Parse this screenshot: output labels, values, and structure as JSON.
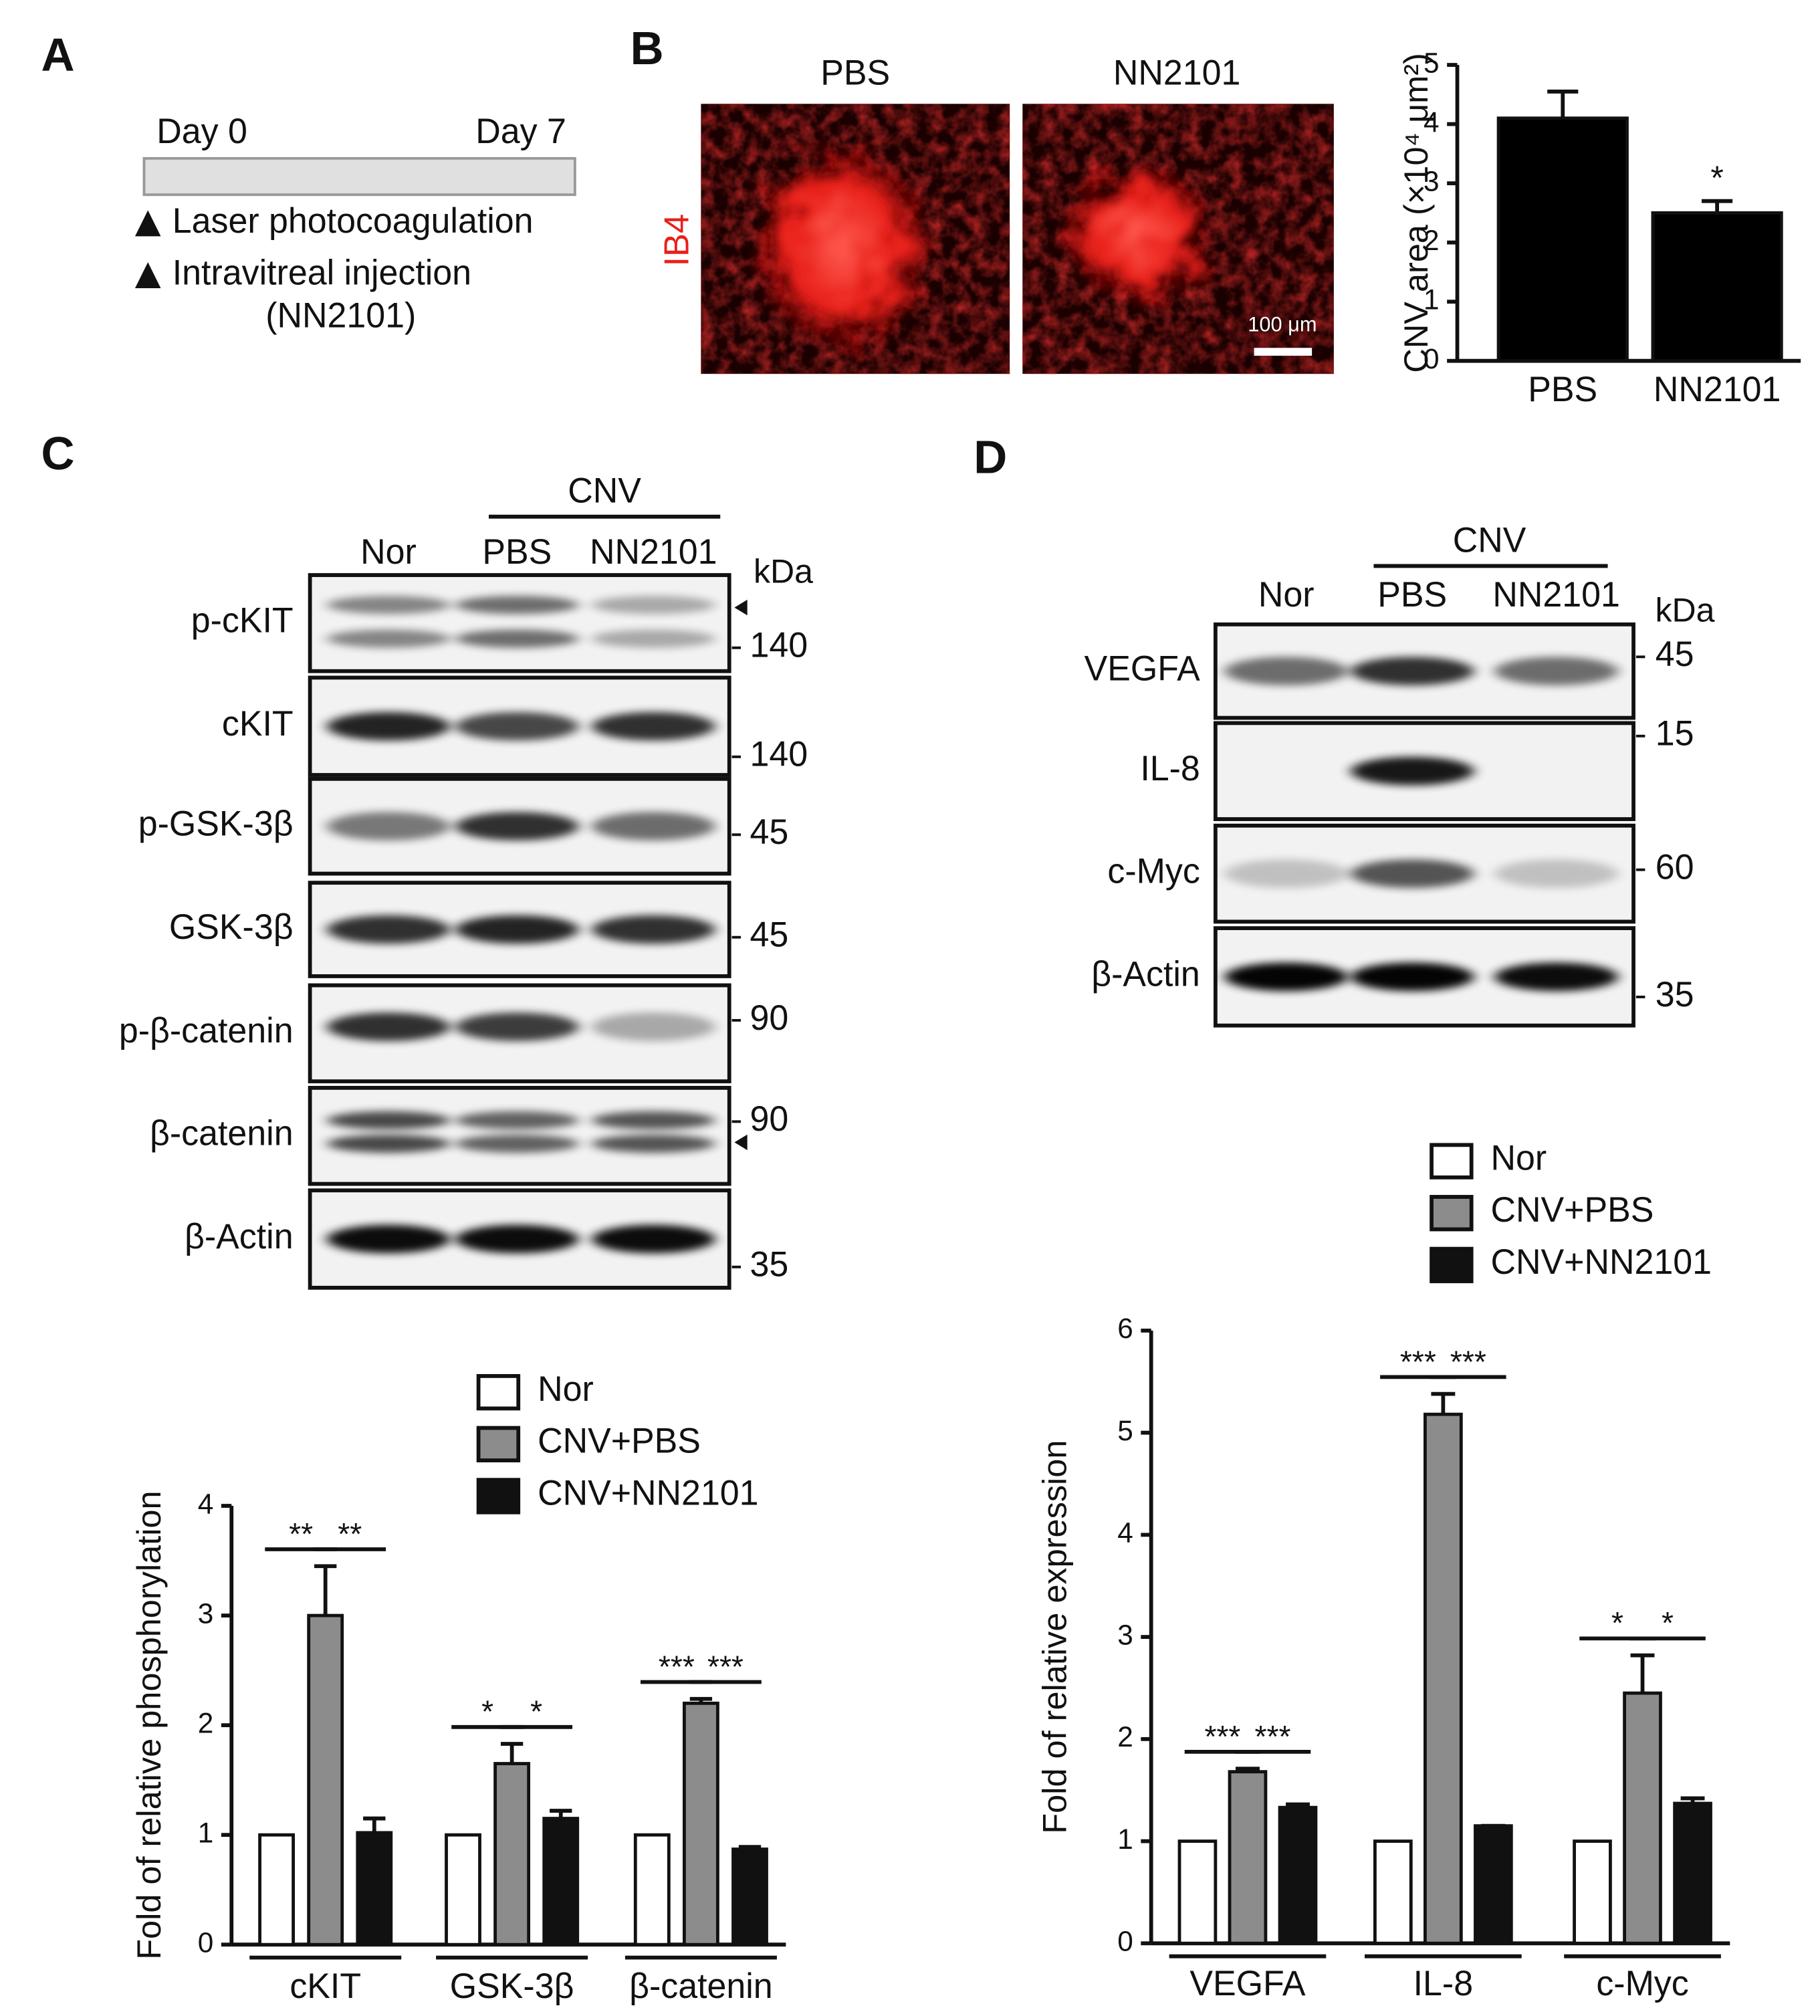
{
  "panel_labels": [
    "A",
    "B",
    "C",
    "D"
  ],
  "timeline": {
    "start": "Day 0",
    "end": "Day 7",
    "events": [
      "Laser photocoagulation",
      "Intravitreal injection"
    ],
    "note": "(NN2101)"
  },
  "images": {
    "columns": [
      "PBS",
      "NN2101"
    ],
    "stain": "IB4",
    "scale_bar": "100 μm"
  },
  "blots": [
    {
      "group": "CNV",
      "lanes": [
        "Nor",
        "PBS",
        "NN2101"
      ],
      "unit": "kDa",
      "rows": [
        {
          "label": "p-cKIT",
          "marker": 140
        },
        {
          "label": "cKIT",
          "marker": 140
        },
        {
          "label": "p-GSK-3β",
          "marker": 45
        },
        {
          "label": "GSK-3β",
          "marker": 45
        },
        {
          "label": "p-β-catenin",
          "marker": 90
        },
        {
          "label": "β-catenin",
          "marker": 90
        },
        {
          "label": "β-Actin",
          "marker": 35
        }
      ]
    },
    {
      "group": "CNV",
      "lanes": [
        "Nor",
        "PBS",
        "NN2101"
      ],
      "unit": "kDa",
      "rows": [
        {
          "label": "VEGFA",
          "marker": 45
        },
        {
          "label": "IL-8",
          "marker": 15
        },
        {
          "label": "c-Myc",
          "marker": 60
        },
        {
          "label": "β-Actin",
          "marker": 35
        }
      ]
    }
  ],
  "chart_data": [
    {
      "type": "bar",
      "categories": [
        "PBS",
        "NN2101"
      ],
      "ylabel": "CNV area (×10⁴ μm²)",
      "series": [
        {
          "color": "#000000",
          "values": [
            4.1,
            2.5
          ],
          "errors": [
            0.45,
            0.2
          ]
        }
      ],
      "ylim": [
        0,
        5
      ],
      "yticks": [
        0,
        1,
        2,
        3,
        4,
        5
      ],
      "significance": [
        [],
        [
          "*"
        ]
      ]
    },
    {
      "type": "bar",
      "categories": [
        "cKIT",
        "GSK-3β",
        "β-catenin"
      ],
      "ylabel": "Fold of relative phosphorylation",
      "series": [
        {
          "name": "Nor",
          "color": "#ffffff",
          "values": [
            1,
            1,
            1
          ]
        },
        {
          "name": "CNV+PBS",
          "color": "#8c8c8c",
          "values": [
            3.0,
            1.65,
            2.2
          ],
          "errors": [
            0.45,
            0.18,
            0.04
          ]
        },
        {
          "name": "CNV+NN2101",
          "color": "#111111",
          "values": [
            1.02,
            1.15,
            0.87
          ],
          "errors": [
            0.13,
            0.07,
            0.02
          ]
        }
      ],
      "ylim": [
        0,
        4
      ],
      "yticks": [
        0,
        1,
        2,
        3,
        4
      ],
      "legend": "top-right",
      "significance": [
        [
          "**",
          "**"
        ],
        [
          "*",
          "*"
        ],
        [
          "***",
          "***"
        ]
      ]
    },
    {
      "type": "bar",
      "categories": [
        "VEGFA",
        "IL-8",
        "c-Myc"
      ],
      "ylabel": "Fold of relative expression",
      "series": [
        {
          "name": "Nor",
          "color": "#ffffff",
          "values": [
            1,
            1,
            1
          ]
        },
        {
          "name": "CNV+PBS",
          "color": "#8c8c8c",
          "values": [
            1.68,
            5.18,
            2.45
          ],
          "errors": [
            0.03,
            0.2,
            0.37
          ]
        },
        {
          "name": "CNV+NN2101",
          "color": "#111111",
          "values": [
            1.33,
            1.15,
            1.37
          ],
          "errors": [
            0.03,
            0,
            0.05
          ]
        }
      ],
      "ylim": [
        0,
        6
      ],
      "yticks": [
        0,
        1,
        2,
        3,
        4,
        5,
        6
      ],
      "legend": "top-right",
      "significance": [
        [
          "***",
          "***"
        ],
        [
          "***",
          "***"
        ],
        [
          "*",
          "*"
        ]
      ]
    }
  ]
}
